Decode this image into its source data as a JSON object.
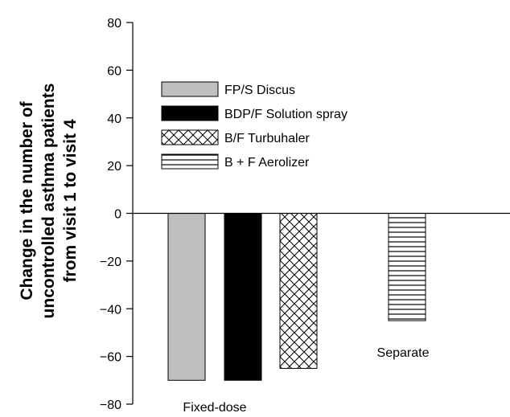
{
  "chart_data": {
    "type": "bar",
    "ylabel_lines": [
      "Change in the number of",
      "uncontrolled asthma patients",
      "from visit 1 to visit 4"
    ],
    "ylim": [
      -80,
      80
    ],
    "yticks": [
      "80",
      "60",
      "40",
      "20",
      "0",
      "−20",
      "−40",
      "−60",
      "−80"
    ],
    "ytick_values": [
      80,
      60,
      40,
      20,
      0,
      -20,
      -40,
      -60,
      -80
    ],
    "grid": false,
    "legend_position": "upper-left",
    "groups": [
      "Fixed-dose",
      "Separate"
    ],
    "series": [
      {
        "name": "FP/S Discus",
        "value": -70,
        "group": "Fixed-dose",
        "fill": "#bfbfbf",
        "pattern": "solid"
      },
      {
        "name": "BDP/F Solution spray",
        "value": -70,
        "group": "Fixed-dose",
        "fill": "#000000",
        "pattern": "solid"
      },
      {
        "name": "B/F Turbuhaler",
        "value": -65,
        "group": "Fixed-dose",
        "fill": "#ffffff",
        "pattern": "crosshatch"
      },
      {
        "name": "B + F Aerolizer",
        "value": -45,
        "group": "Separate",
        "fill": "#ffffff",
        "pattern": "horizontal-lines"
      }
    ]
  }
}
